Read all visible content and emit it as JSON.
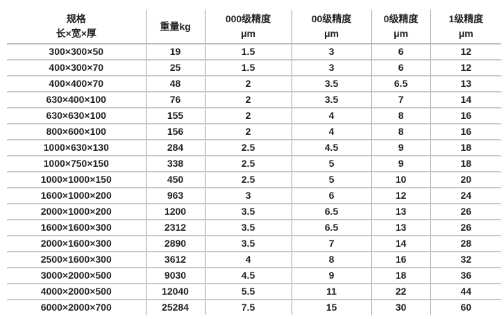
{
  "table": {
    "headers": [
      {
        "line1": "规格",
        "line2": "长×宽×厚"
      },
      {
        "line1": "重量kg",
        "line2": ""
      },
      {
        "line1": "000级精度",
        "line2": "μm"
      },
      {
        "line1": "00级精度",
        "line2": "μm"
      },
      {
        "line1": "0级精度",
        "line2": "μm"
      },
      {
        "line1": "1级精度",
        "line2": "μm"
      }
    ],
    "rows": [
      [
        "300×300×50",
        "19",
        "1.5",
        "3",
        "6",
        "12"
      ],
      [
        "400×300×70",
        "25",
        "1.5",
        "3",
        "6",
        "12"
      ],
      [
        "400×400×70",
        "48",
        "2",
        "3.5",
        "6.5",
        "13"
      ],
      [
        "630×400×100",
        "76",
        "2",
        "3.5",
        "7",
        "14"
      ],
      [
        "630×630×100",
        "155",
        "2",
        "4",
        "8",
        "16"
      ],
      [
        "800×600×100",
        "156",
        "2",
        "4",
        "8",
        "16"
      ],
      [
        "1000×630×130",
        "284",
        "2.5",
        "4.5",
        "9",
        "18"
      ],
      [
        "1000×750×150",
        "338",
        "2.5",
        "5",
        "9",
        "18"
      ],
      [
        "1000×1000×150",
        "450",
        "2.5",
        "5",
        "10",
        "20"
      ],
      [
        "1600×1000×200",
        "963",
        "3",
        "6",
        "12",
        "24"
      ],
      [
        "2000×1000×200",
        "1200",
        "3.5",
        "6.5",
        "13",
        "26"
      ],
      [
        "1600×1600×300",
        "2312",
        "3.5",
        "6.5",
        "13",
        "26"
      ],
      [
        "2000×1600×300",
        "2890",
        "3.5",
        "7",
        "14",
        "28"
      ],
      [
        "2500×1600×300",
        "3612",
        "4",
        "8",
        "16",
        "32"
      ],
      [
        "3000×2000×500",
        "9030",
        "4.5",
        "9",
        "18",
        "36"
      ],
      [
        "4000×2000×500",
        "12040",
        "5.5",
        "11",
        "22",
        "44"
      ],
      [
        "6000×2000×700",
        "25284",
        "7.5",
        "15",
        "30",
        "60"
      ]
    ]
  }
}
